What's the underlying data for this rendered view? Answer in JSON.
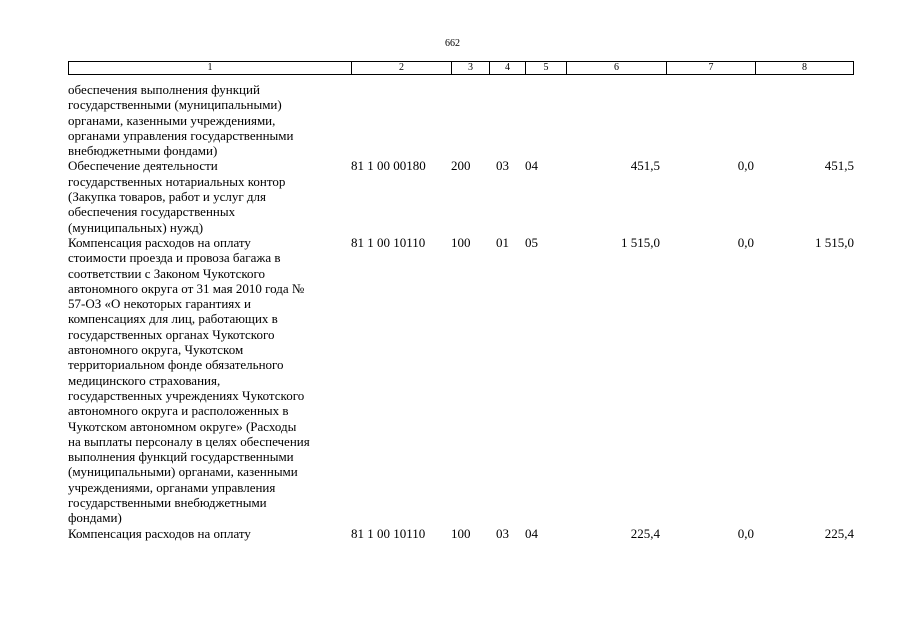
{
  "page_number": "662",
  "header": [
    "1",
    "2",
    "3",
    "4",
    "5",
    "6",
    "7",
    "8"
  ],
  "rows": [
    {
      "desc": "обеспечения выполнения функций\nгосударственными (муниципальными)\nорганами, казенными учреждениями,\nорганами управления государственными\nвнебюджетными фондами)",
      "code": "",
      "vr": "",
      "rz": "",
      "pr": "",
      "sum": "",
      "sum2": "",
      "total": ""
    },
    {
      "desc": "Обеспечение деятельности\nгосударственных нотариальных контор\n(Закупка товаров, работ и услуг для\nобеспечения государственных\n(муниципальных) нужд)",
      "code": "81 1 00 00180",
      "vr": "200",
      "rz": "03",
      "pr": "04",
      "sum": "451,5",
      "sum2": "0,0",
      "total": "451,5"
    },
    {
      "desc": "Компенсация расходов на оплату\nстоимости проезда и провоза багажа в\nсоответствии с Законом Чукотского\nавтономного округа от 31 мая 2010 года №\n57-ОЗ «О некоторых гарантиях и\nкомпенсациях для лиц, работающих в\nгосударственных органах Чукотского\nавтономного округа, Чукотском\nтерриториальном фонде обязательного\nмедицинского страхования,\nгосударственных учреждениях Чукотского\nавтономного округа и расположенных в\nЧукотском автономном округе» (Расходы\nна выплаты персоналу в целях обеспечения\nвыполнения функций государственными\n(муниципальными) органами, казенными\nучреждениями, органами управления\nгосударственными внебюджетными\nфондами)",
      "code": "81 1 00 10110",
      "vr": "100",
      "rz": "01",
      "pr": "05",
      "sum": "1 515,0",
      "sum2": "0,0",
      "total": "1 515,0"
    },
    {
      "desc": "Компенсация расходов на оплату",
      "code": "81 1 00 10110",
      "vr": "100",
      "rz": "03",
      "pr": "04",
      "sum": "225,4",
      "sum2": "0,0",
      "total": "225,4"
    }
  ]
}
